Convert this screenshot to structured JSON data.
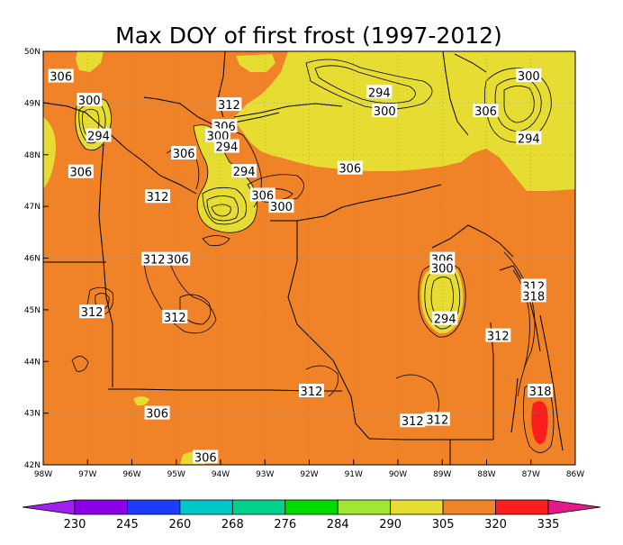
{
  "chart_data": {
    "type": "contour map",
    "title": "Max DOY of first frost (1997-2012)",
    "xlim": [
      -98,
      -86
    ],
    "ylim": [
      42,
      50
    ],
    "x_tick_labels": [
      "98W",
      "97W",
      "96W",
      "95W",
      "94W",
      "93W",
      "92W",
      "91W",
      "90W",
      "89W",
      "88W",
      "87W",
      "86W"
    ],
    "y_tick_labels": [
      "42N",
      "43N",
      "44N",
      "45N",
      "46N",
      "47N",
      "48N",
      "49N",
      "50N"
    ],
    "contour_labels": [
      {
        "text": "306",
        "lon": -97.6,
        "lat": 49.52
      },
      {
        "text": "300",
        "lon": -96.96,
        "lat": 49.06
      },
      {
        "text": "294",
        "lon": -96.75,
        "lat": 48.37
      },
      {
        "text": "306",
        "lon": -97.15,
        "lat": 47.67
      },
      {
        "text": "312",
        "lon": -93.81,
        "lat": 48.97
      },
      {
        "text": "306",
        "lon": -93.91,
        "lat": 48.55
      },
      {
        "text": "300",
        "lon": -94.06,
        "lat": 48.37
      },
      {
        "text": "294",
        "lon": -93.86,
        "lat": 48.16
      },
      {
        "text": "306",
        "lon": -94.83,
        "lat": 48.03
      },
      {
        "text": "294",
        "lon": -93.47,
        "lat": 47.68
      },
      {
        "text": "312",
        "lon": -95.42,
        "lat": 47.19
      },
      {
        "text": "306",
        "lon": -93.05,
        "lat": 47.22
      },
      {
        "text": "300",
        "lon": -92.63,
        "lat": 47.0
      },
      {
        "text": "294",
        "lon": -90.42,
        "lat": 49.21
      },
      {
        "text": "300",
        "lon": -90.3,
        "lat": 48.85
      },
      {
        "text": "306",
        "lon": -91.08,
        "lat": 47.74
      },
      {
        "text": "306",
        "lon": -88.02,
        "lat": 48.85
      },
      {
        "text": "300",
        "lon": -87.05,
        "lat": 49.53
      },
      {
        "text": "294",
        "lon": -87.05,
        "lat": 48.32
      },
      {
        "text": "312",
        "lon": -95.5,
        "lat": 45.98
      },
      {
        "text": "306",
        "lon": -94.97,
        "lat": 45.98
      },
      {
        "text": "312",
        "lon": -96.9,
        "lat": 44.96
      },
      {
        "text": "312",
        "lon": -95.03,
        "lat": 44.86
      },
      {
        "text": "306",
        "lon": -89.0,
        "lat": 45.98
      },
      {
        "text": "300",
        "lon": -89.0,
        "lat": 45.81
      },
      {
        "text": "294",
        "lon": -88.94,
        "lat": 44.83
      },
      {
        "text": "312",
        "lon": -86.94,
        "lat": 45.46
      },
      {
        "text": "318",
        "lon": -86.94,
        "lat": 45.27
      },
      {
        "text": "312",
        "lon": -87.74,
        "lat": 44.5
      },
      {
        "text": "312",
        "lon": -91.95,
        "lat": 43.43
      },
      {
        "text": "306",
        "lon": -95.43,
        "lat": 43.0
      },
      {
        "text": "312",
        "lon": -89.67,
        "lat": 42.85
      },
      {
        "text": "312",
        "lon": -89.11,
        "lat": 42.88
      },
      {
        "text": "318",
        "lon": -86.79,
        "lat": 43.43
      },
      {
        "text": "306",
        "lon": -94.34,
        "lat": 42.15
      }
    ],
    "colorbar": {
      "labels": [
        "230",
        "245",
        "260",
        "268",
        "276",
        "284",
        "290",
        "305",
        "320",
        "335"
      ],
      "colors": [
        "#a020f0",
        "#8c00e6",
        "#1e3cff",
        "#00c8c8",
        "#00d28c",
        "#00dc00",
        "#a0e632",
        "#e6dc32",
        "#f08228",
        "#fa1e1e",
        "#e6198c"
      ]
    }
  }
}
